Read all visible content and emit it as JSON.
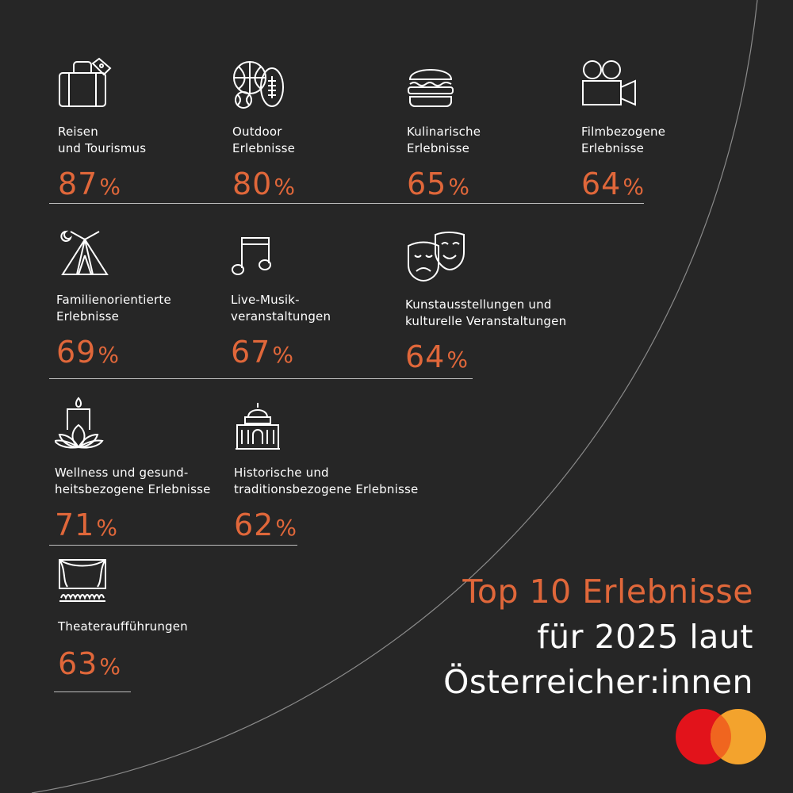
{
  "title": {
    "line1": "Top 10 Erlebnisse",
    "line2": "für 2025 laut",
    "line3": "Österreicher:innen"
  },
  "colors": {
    "background": "#262626",
    "accent": "#e0673a",
    "text": "#ffffff",
    "mastercard_red": "#e2131b",
    "mastercard_yellow": "#f3a32d",
    "mastercard_overlap": "#f0651f"
  },
  "chart_data": {
    "type": "table",
    "categories": [
      "Reisen und Tourismus",
      "Outdoor Erlebnisse",
      "Kulinarische Erlebnisse",
      "Filmbezogene Erlebnisse",
      "Familienorientierte Erlebnisse",
      "Live-Musikveranstaltungen",
      "Kunstausstellungen und kulturelle Veranstaltungen",
      "Wellness und gesundheitsbezogene Erlebnisse",
      "Historische und traditionsbezogene Erlebnisse",
      "Theateraufführungen"
    ],
    "values": [
      87,
      80,
      65,
      64,
      69,
      67,
      64,
      71,
      62,
      63
    ],
    "unit": "%",
    "title": "Top 10 Erlebnisse für 2025 laut Österreicher:innen"
  },
  "items": [
    {
      "label_l1": "Reisen",
      "label_l2": "und Tourismus",
      "value": "87",
      "sign": "%",
      "icon": "suitcase-icon"
    },
    {
      "label_l1": "Outdoor",
      "label_l2": "Erlebnisse",
      "value": "80",
      "sign": "%",
      "icon": "sports-balls-icon"
    },
    {
      "label_l1": "Kulinarische",
      "label_l2": "Erlebnisse",
      "value": "65",
      "sign": "%",
      "icon": "burger-icon"
    },
    {
      "label_l1": "Filmbezogene",
      "label_l2": "Erlebnisse",
      "value": "64",
      "sign": "%",
      "icon": "film-camera-icon"
    },
    {
      "label_l1": "Familienorientierte",
      "label_l2": "Erlebnisse",
      "value": "69",
      "sign": "%",
      "icon": "tent-icon"
    },
    {
      "label_l1": "Live-Musik-",
      "label_l2": "veranstaltungen",
      "value": "67",
      "sign": "%",
      "icon": "music-note-icon"
    },
    {
      "label_l1": "Kunstausstellungen und",
      "label_l2": "kulturelle Veranstaltungen",
      "value": "64",
      "sign": "%",
      "icon": "theatre-masks-icon"
    },
    {
      "label_l1": "Wellness und gesund-",
      "label_l2": "heitsbezogene Erlebnisse",
      "value": "71",
      "sign": "%",
      "icon": "candle-lotus-icon"
    },
    {
      "label_l1": "Historische und",
      "label_l2": "traditionsbezogene Erlebnisse",
      "value": "62",
      "sign": "%",
      "icon": "historic-building-icon"
    },
    {
      "label_l1": "Theateraufführungen",
      "label_l2": "",
      "value": "63",
      "sign": "%",
      "icon": "theatre-stage-icon"
    }
  ]
}
